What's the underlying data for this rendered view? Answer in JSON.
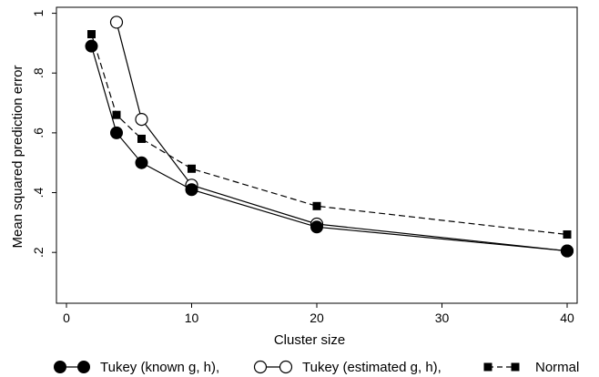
{
  "chart_data": {
    "type": "line",
    "xlabel": "Cluster size",
    "ylabel": "Mean squared prediction error",
    "xlim": [
      -0.8,
      40.8
    ],
    "ylim": [
      0.03,
      1.02
    ],
    "xticks": [
      0,
      10,
      20,
      30,
      40
    ],
    "xtick_labels": [
      "0",
      "10",
      "20",
      "30",
      "40"
    ],
    "yticks": [
      0.2,
      0.4,
      0.6,
      0.8,
      1.0
    ],
    "ytick_labels": [
      ".2",
      ".4",
      ".6",
      ".8",
      "1"
    ],
    "grid": false,
    "legend_position": "bottom",
    "series": [
      {
        "name": "Tukey (known g, h),",
        "marker": "filled-circle",
        "line": "solid",
        "color": "#000000",
        "x": [
          2,
          4,
          6,
          10,
          20,
          40
        ],
        "y": [
          0.89,
          0.6,
          0.5,
          0.41,
          0.285,
          0.205
        ]
      },
      {
        "name": "Tukey (estimated g, h),",
        "marker": "hollow-circle",
        "line": "solid",
        "color": "#000000",
        "x": [
          4,
          6,
          10,
          20,
          40
        ],
        "y": [
          0.97,
          0.645,
          0.425,
          0.295,
          0.205
        ]
      },
      {
        "name": "Normal",
        "marker": "filled-square",
        "line": "dashed",
        "color": "#000000",
        "x": [
          2,
          4,
          6,
          10,
          20,
          40
        ],
        "y": [
          0.93,
          0.66,
          0.58,
          0.48,
          0.355,
          0.26
        ]
      }
    ]
  }
}
